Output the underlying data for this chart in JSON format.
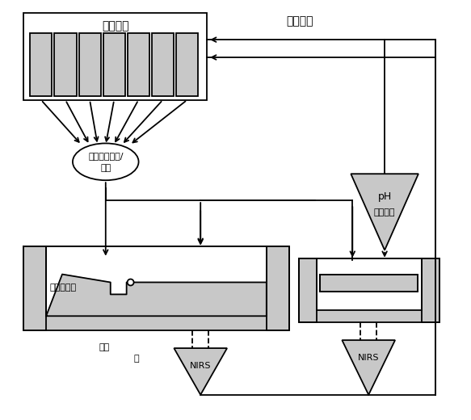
{
  "bg_color": "#ffffff",
  "line_color": "#000000",
  "fill_color": "#c8c8c8",
  "labels": {
    "baichi_seibun": "培地成分",
    "baichi_sousa": "培地操作",
    "staging_line1": "ステージング/",
    "staging_line2": "混合",
    "dish": "ディッシュ",
    "zahyo": "座位",
    "tai": "胚",
    "NIRS1": "NIRS",
    "NIRS2": "NIRS",
    "pH_line1": "pH",
    "pH_line2": "センサー"
  }
}
